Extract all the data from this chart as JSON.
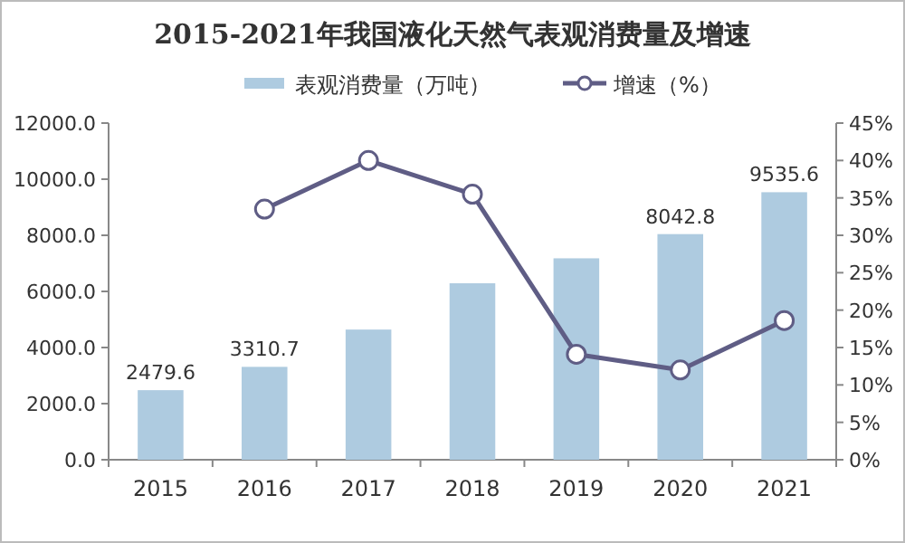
{
  "chart_data": {
    "type": "bar",
    "title": "2015-2021年我国液化天然气表观消费量及增速",
    "categories": [
      "2015",
      "2016",
      "2017",
      "2018",
      "2019",
      "2020",
      "2021"
    ],
    "series": [
      {
        "name": "表观消费量（万吨）",
        "color": "#aecbe0",
        "values": [
          2479.6,
          3310.7,
          4640,
          6290,
          7180,
          8042.8,
          9535.6
        ],
        "value_labels": [
          "2479.6",
          "3310.7",
          null,
          null,
          null,
          "8042.8",
          "9535.6"
        ]
      },
      {
        "name": "增速（%）",
        "type": "line",
        "axis": "y2",
        "color": "#5f5d85",
        "marker": "circle",
        "values": [
          null,
          33.5,
          40.0,
          35.5,
          14.1,
          12.0,
          18.6
        ]
      }
    ],
    "ylim": [
      0,
      12000
    ],
    "yticks": [
      {
        "value": 0,
        "label": "0.0"
      },
      {
        "value": 2000,
        "label": "2000.0"
      },
      {
        "value": 4000,
        "label": "4000.0"
      },
      {
        "value": 6000,
        "label": "6000.0"
      },
      {
        "value": 8000,
        "label": "8000.0"
      },
      {
        "value": 10000,
        "label": "10000.0"
      },
      {
        "value": 12000,
        "label": "12000.0"
      }
    ],
    "y2lim": [
      0,
      45
    ],
    "y2ticks": [
      {
        "value": 0,
        "label": "0%"
      },
      {
        "value": 5,
        "label": "5%"
      },
      {
        "value": 10,
        "label": "10%"
      },
      {
        "value": 15,
        "label": "15%"
      },
      {
        "value": 20,
        "label": "20%"
      },
      {
        "value": 25,
        "label": "25%"
      },
      {
        "value": 30,
        "label": "30%"
      },
      {
        "value": 35,
        "label": "35%"
      },
      {
        "value": 40,
        "label": "40%"
      },
      {
        "value": 45,
        "label": "45%"
      }
    ],
    "legend": "top",
    "grid": false
  }
}
